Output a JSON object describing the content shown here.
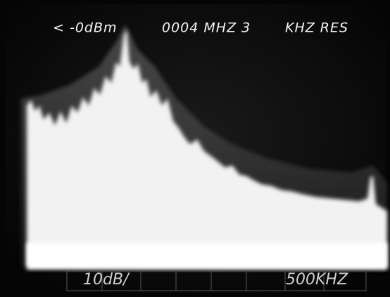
{
  "header": {
    "reference_level": "< -0dBm",
    "center_frequency": "0004 MHZ 3",
    "resolution": "KHZ RES"
  },
  "footer": {
    "scale": "10dB/",
    "span": "500KHZ"
  }
}
